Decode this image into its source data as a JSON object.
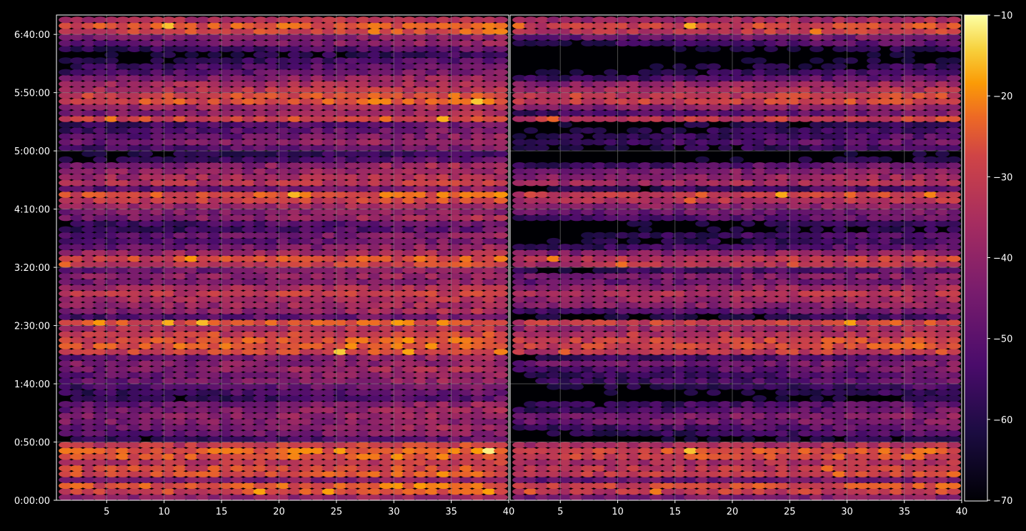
{
  "chart_data": {
    "type": "heatmap",
    "title": "",
    "xlabel": "",
    "ylabel": "",
    "background": "#000000",
    "grid": true,
    "grid_color": "#8a8a8a",
    "colormap": "inferno",
    "x_ticks_left": [
      "5",
      "10",
      "15",
      "20",
      "25",
      "30",
      "35",
      "40"
    ],
    "x_ticks_right": [
      "5",
      "10",
      "15",
      "20",
      "25",
      "30",
      "35",
      "40"
    ],
    "x_tick_values": [
      5,
      10,
      15,
      20,
      25,
      30,
      35,
      40
    ],
    "xlim": [
      1,
      40
    ],
    "y_ticks": [
      "0:00:00",
      "0:50:00",
      "1:40:00",
      "2:30:00",
      "3:20:00",
      "4:10:00",
      "5:00:00",
      "5:50:00",
      "6:40:00"
    ],
    "y_tick_values_seconds": [
      0,
      3000,
      6000,
      9000,
      12000,
      15000,
      18000,
      21000,
      24000
    ],
    "ylim_seconds": [
      0,
      25000
    ],
    "colorbar": {
      "ticks": [
        "−10",
        "−20",
        "−30",
        "−40",
        "−50",
        "−60",
        "−70"
      ],
      "tick_values": [
        -10,
        -20,
        -30,
        -40,
        -50,
        -60,
        -70
      ],
      "range": [
        -70,
        -10
      ]
    },
    "row_step_seconds": 300,
    "columns_per_panel": 39,
    "row_profile_db": [
      -42,
      -30,
      -27,
      -45,
      -28,
      -30,
      -34,
      -27,
      -26,
      -33,
      -60,
      -52,
      -48,
      -44,
      -42,
      -48,
      -50,
      -62,
      -58,
      -55,
      -49,
      -50,
      -46,
      -44,
      -50,
      -30,
      -27,
      -28,
      -32,
      -36,
      -28,
      -55,
      -46,
      -40,
      -37,
      -33,
      -38,
      -45,
      -42,
      -50,
      -32,
      -30,
      -40,
      -50,
      -55,
      -52,
      -60,
      -58,
      -47,
      -45,
      -40,
      -32,
      -28,
      -52,
      -35,
      -38,
      -42,
      -47,
      -60,
      -65,
      -55,
      -48,
      -52,
      -55,
      -58,
      -30,
      -46,
      -40,
      -28,
      -30,
      -35,
      -38,
      -48,
      -55,
      -58,
      -62,
      -66,
      -60,
      -50,
      -45,
      -30,
      -28,
      -36
    ],
    "notes": [
      "Two side-by-side panels share the same y axis and color scale; right panel is a dimmer variant of the left."
    ]
  }
}
